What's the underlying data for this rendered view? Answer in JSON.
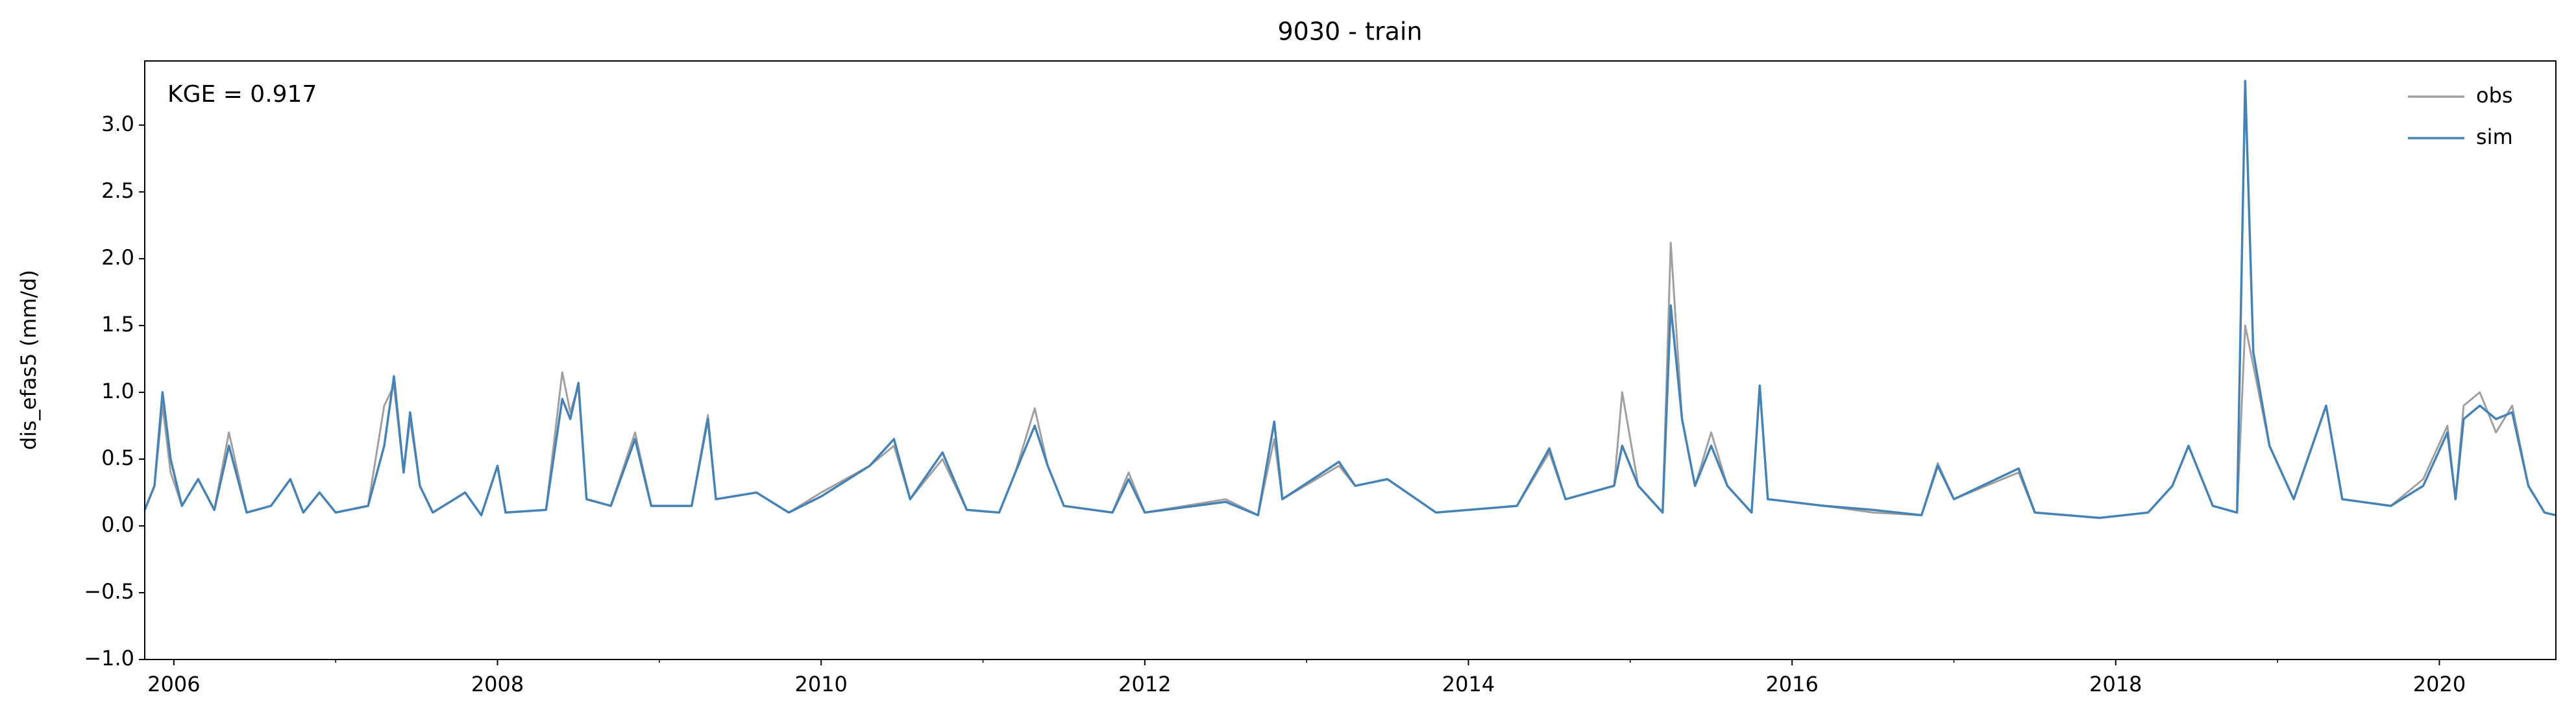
{
  "chart_data": {
    "type": "line",
    "title": "9030 - train",
    "ylabel": "dis_efas5 (mm/d)",
    "annotation": "KGE = 0.917",
    "legend": "upper right",
    "xlim": [
      2005.82,
      2020.72
    ],
    "xticks": [
      2006,
      2008,
      2010,
      2012,
      2014,
      2016,
      2018,
      2020
    ],
    "xminorticks": [
      2007,
      2009,
      2011,
      2013,
      2015,
      2017,
      2019
    ],
    "ylim": [
      -1,
      3.48
    ],
    "yticks": [
      {
        "value": -1,
        "label": "−1.0"
      },
      {
        "value": -0.5,
        "label": "−0.5"
      },
      {
        "value": 0,
        "label": "0.0"
      },
      0.5,
      {
        "value": 1,
        "label": "1.0"
      },
      1.5,
      {
        "value": 2,
        "label": "2.0"
      },
      2.5,
      {
        "value": 3,
        "label": "3.0"
      }
    ],
    "x": [
      2005.82,
      2005.88,
      2005.93,
      2005.98,
      2006.05,
      2006.15,
      2006.25,
      2006.34,
      2006.45,
      2006.6,
      2006.72,
      2006.8,
      2006.9,
      2007.0,
      2007.2,
      2007.3,
      2007.36,
      2007.42,
      2007.46,
      2007.52,
      2007.6,
      2007.8,
      2007.9,
      2008.0,
      2008.05,
      2008.3,
      2008.4,
      2008.45,
      2008.5,
      2008.55,
      2008.7,
      2008.85,
      2008.95,
      2009.2,
      2009.3,
      2009.35,
      2009.6,
      2009.8,
      2010.0,
      2010.3,
      2010.45,
      2010.55,
      2010.75,
      2010.9,
      2011.1,
      2011.2,
      2011.32,
      2011.4,
      2011.5,
      2011.8,
      2011.9,
      2012.0,
      2012.5,
      2012.7,
      2012.8,
      2012.85,
      2013.2,
      2013.3,
      2013.5,
      2013.8,
      2014.3,
      2014.5,
      2014.6,
      2014.9,
      2014.95,
      2015.05,
      2015.2,
      2015.25,
      2015.32,
      2015.4,
      2015.5,
      2015.6,
      2015.75,
      2015.8,
      2015.85,
      2016.2,
      2016.5,
      2016.8,
      2016.9,
      2017.0,
      2017.4,
      2017.5,
      2017.9,
      2018.2,
      2018.35,
      2018.45,
      2018.6,
      2018.75,
      2018.8,
      2018.85,
      2018.95,
      2019.1,
      2019.3,
      2019.4,
      2019.7,
      2019.9,
      2020.05,
      2020.1,
      2020.15,
      2020.25,
      2020.35,
      2020.45,
      2020.55,
      2020.65,
      2020.72
    ],
    "series": [
      {
        "name": "obs",
        "color": "#a0a0a0",
        "values": [
          0.12,
          0.3,
          0.9,
          0.4,
          0.15,
          0.35,
          0.12,
          0.7,
          0.1,
          0.15,
          0.35,
          0.1,
          0.25,
          0.1,
          0.15,
          0.9,
          1.05,
          0.4,
          0.8,
          0.3,
          0.1,
          0.25,
          0.08,
          0.45,
          0.1,
          0.12,
          1.15,
          0.85,
          1.05,
          0.2,
          0.15,
          0.7,
          0.15,
          0.15,
          0.83,
          0.2,
          0.25,
          0.1,
          0.25,
          0.45,
          0.6,
          0.2,
          0.5,
          0.12,
          0.1,
          0.4,
          0.88,
          0.45,
          0.15,
          0.1,
          0.4,
          0.1,
          0.2,
          0.08,
          0.65,
          0.2,
          0.45,
          0.3,
          0.35,
          0.1,
          0.15,
          0.55,
          0.2,
          0.3,
          1.0,
          0.3,
          0.1,
          2.12,
          0.8,
          0.3,
          0.7,
          0.3,
          0.1,
          1.05,
          0.2,
          0.15,
          0.1,
          0.08,
          0.47,
          0.2,
          0.4,
          0.1,
          0.06,
          0.1,
          0.3,
          0.6,
          0.15,
          0.1,
          1.5,
          1.2,
          0.6,
          0.2,
          0.9,
          0.2,
          0.15,
          0.35,
          0.75,
          0.2,
          0.9,
          1.0,
          0.7,
          0.9,
          0.3,
          0.1,
          0.08
        ]
      },
      {
        "name": "sim",
        "color": "#4682b4",
        "values": [
          0.12,
          0.3,
          1.0,
          0.5,
          0.15,
          0.35,
          0.12,
          0.6,
          0.1,
          0.15,
          0.35,
          0.1,
          0.25,
          0.1,
          0.15,
          0.6,
          1.12,
          0.4,
          0.85,
          0.3,
          0.1,
          0.25,
          0.08,
          0.45,
          0.1,
          0.12,
          0.95,
          0.8,
          1.07,
          0.2,
          0.15,
          0.65,
          0.15,
          0.15,
          0.8,
          0.2,
          0.25,
          0.1,
          0.22,
          0.45,
          0.65,
          0.2,
          0.55,
          0.12,
          0.1,
          0.4,
          0.75,
          0.45,
          0.15,
          0.1,
          0.35,
          0.1,
          0.18,
          0.08,
          0.78,
          0.2,
          0.48,
          0.3,
          0.35,
          0.1,
          0.15,
          0.58,
          0.2,
          0.3,
          0.6,
          0.3,
          0.1,
          1.65,
          0.8,
          0.3,
          0.6,
          0.3,
          0.1,
          1.05,
          0.2,
          0.15,
          0.12,
          0.08,
          0.45,
          0.2,
          0.43,
          0.1,
          0.06,
          0.1,
          0.3,
          0.6,
          0.15,
          0.1,
          3.33,
          1.3,
          0.6,
          0.2,
          0.9,
          0.2,
          0.15,
          0.3,
          0.7,
          0.2,
          0.8,
          0.9,
          0.8,
          0.85,
          0.3,
          0.1,
          0.08
        ]
      }
    ]
  }
}
